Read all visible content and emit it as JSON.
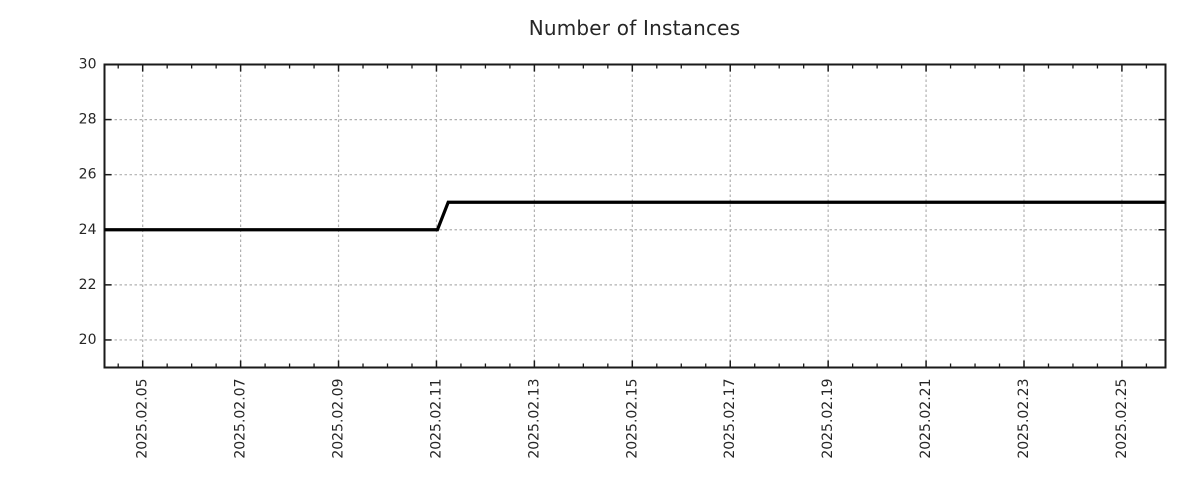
{
  "page": {
    "background_color": "#ffffff"
  },
  "chart_data": {
    "type": "line",
    "title": "Number of Instances",
    "xlabel": "",
    "ylabel": "",
    "x_unit": "day of February 2025",
    "xlim": [
      4.22,
      25.89
    ],
    "ylim": [
      19,
      30
    ],
    "y_major_ticks": [
      20,
      22,
      24,
      26,
      28,
      30
    ],
    "x_major_ticks": [
      {
        "day": 5,
        "label": "2025.02.05"
      },
      {
        "day": 7,
        "label": "2025.02.07"
      },
      {
        "day": 9,
        "label": "2025.02.09"
      },
      {
        "day": 11,
        "label": "2025.02.11"
      },
      {
        "day": 13,
        "label": "2025.02.13"
      },
      {
        "day": 15,
        "label": "2025.02.15"
      },
      {
        "day": 17,
        "label": "2025.02.17"
      },
      {
        "day": 19,
        "label": "2025.02.19"
      },
      {
        "day": 21,
        "label": "2025.02.21"
      },
      {
        "day": 23,
        "label": "2025.02.23"
      },
      {
        "day": 25,
        "label": "2025.02.25"
      }
    ],
    "x_minor_step": 0.5,
    "grid": {
      "show": true,
      "style": "dotted",
      "color": "#b0b0b0"
    },
    "legend": {
      "show": false
    },
    "axis_color": "#1a1a1a",
    "text_color": "#262626",
    "series": [
      {
        "name": "instances",
        "color": "#000000",
        "points": [
          [
            4.22,
            24
          ],
          [
            11.02,
            24
          ],
          [
            11.24,
            25
          ],
          [
            25.89,
            25
          ]
        ]
      }
    ]
  }
}
